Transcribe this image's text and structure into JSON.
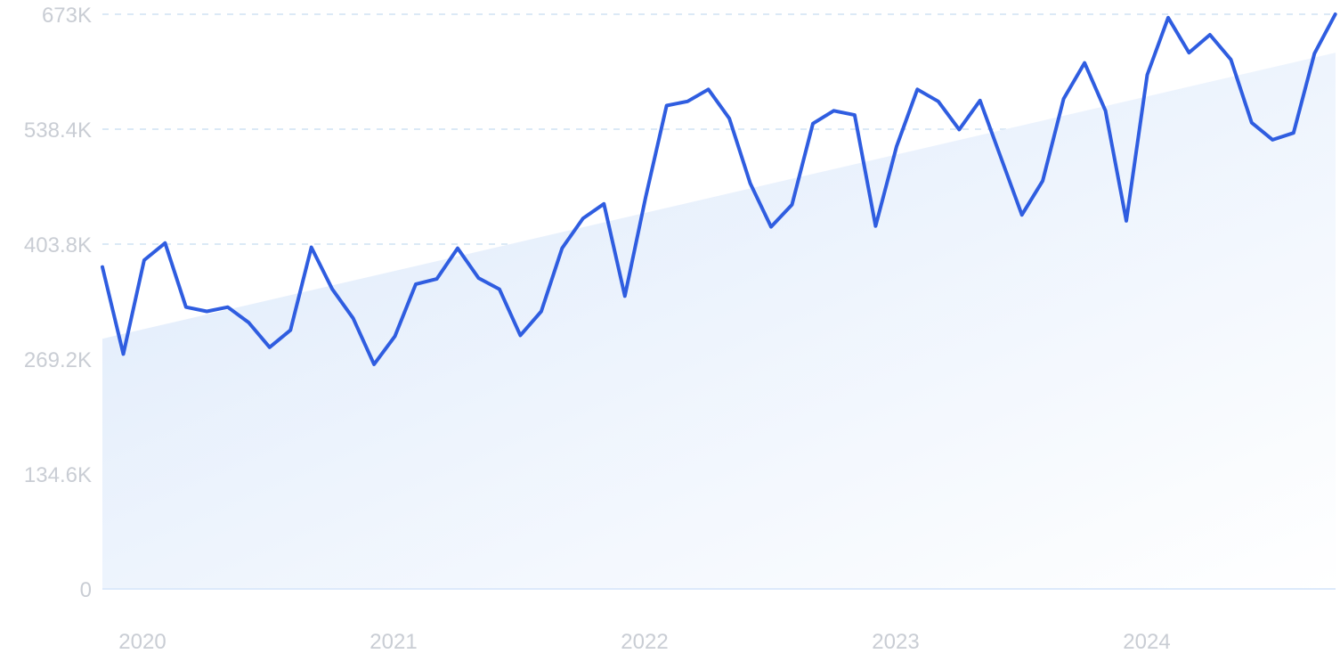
{
  "chart_data": {
    "type": "line",
    "title": "",
    "xlabel": "",
    "ylabel": "",
    "x_ticks": [
      "2020",
      "2021",
      "2022",
      "2023",
      "2024"
    ],
    "y_ticks": [
      "0",
      "134.6K",
      "269.2K",
      "403.8K",
      "538.4K",
      "673K"
    ],
    "y_tick_values": [
      0,
      134600,
      269200,
      403800,
      538400,
      673000
    ],
    "ylim": [
      0,
      673000
    ],
    "grid": true,
    "legend": "none",
    "series": [
      {
        "values": [
          377000,
          275000,
          385000,
          405000,
          330000,
          325000,
          330000,
          312000,
          283000,
          303000,
          400000,
          351000,
          317000,
          263000,
          296000,
          357000,
          363000,
          399000,
          364000,
          351000,
          297000,
          325000,
          399000,
          434000,
          451000,
          343000,
          459000,
          566000,
          571000,
          585000,
          551000,
          475000,
          424000,
          450000,
          545000,
          560000,
          555000,
          425000,
          518000,
          585000,
          571000,
          538000,
          572000,
          505000,
          438000,
          478000,
          574000,
          616000,
          560000,
          431000,
          602000,
          669000,
          628000,
          649000,
          620000,
          546000,
          526000,
          534000,
          627000,
          673000
        ]
      }
    ],
    "start": "2019-12",
    "trend": {
      "start": 293000,
      "end": 628000
    },
    "colors": {
      "line": "#2f5de0",
      "fill_top": "#dce9fb",
      "fill_bottom": "#ffffff",
      "grid": "#cfe2f3",
      "tick_label": "#c9cdd4"
    }
  }
}
